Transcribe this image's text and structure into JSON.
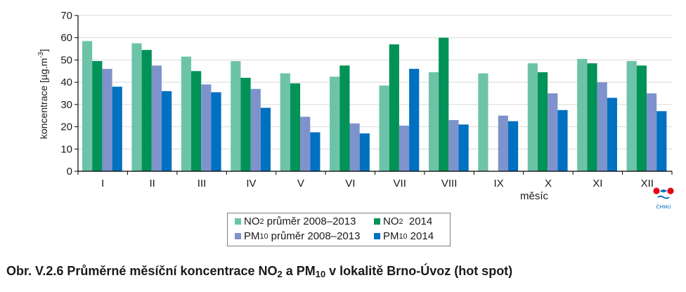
{
  "chart_data": {
    "type": "bar",
    "xlabel": "měsíc",
    "ylabel": "koncentrace [µg.m-3]",
    "ylim": [
      0,
      70
    ],
    "yticks": [
      0,
      10,
      20,
      30,
      40,
      50,
      60,
      70
    ],
    "grid": true,
    "legend_position": "bottom-center",
    "categories": [
      "I",
      "II",
      "III",
      "IV",
      "V",
      "VI",
      "VII",
      "VIII",
      "IX",
      "X",
      "XI",
      "XII"
    ],
    "series": [
      {
        "name": "NO2 průměr 2008–2013",
        "color": "#6dc3a8",
        "values": [
          58.5,
          57.5,
          51.5,
          49.5,
          44,
          42.5,
          38.5,
          44.5,
          44,
          48.5,
          50.5,
          49.5
        ]
      },
      {
        "name": "NO2 2014",
        "color": "#009257",
        "values": [
          49.5,
          54.5,
          45,
          42,
          39.5,
          47.5,
          57,
          60,
          null,
          44.5,
          48.5,
          47.5
        ]
      },
      {
        "name": "PM10 průměr 2008–2013",
        "color": "#7e93cc",
        "values": [
          46,
          47.5,
          39,
          37,
          24.5,
          21.5,
          20.5,
          23,
          25,
          35,
          40,
          35
        ]
      },
      {
        "name": "PM10 2014",
        "color": "#0070c0",
        "values": [
          38,
          36,
          35.5,
          28.5,
          17.5,
          17,
          46,
          21,
          22.5,
          27.5,
          33,
          27
        ]
      }
    ]
  },
  "legend": [
    {
      "pre": "NO",
      "sub": "2",
      "post": " průměr 2008–2013",
      "color": "#6dc3a8"
    },
    {
      "pre": "NO",
      "sub": "2",
      "post": "  2014",
      "color": "#009257"
    },
    {
      "pre": "PM",
      "sub": "10",
      "post": " průměr 2008–2013",
      "color": "#7e93cc"
    },
    {
      "pre": "PM",
      "sub": "10",
      "post": " 2014",
      "color": "#0070c0"
    }
  ],
  "caption": {
    "p1": "Obr. V.2.6  Průměrné měsíční koncentrace NO",
    "s1": "2",
    "p2": " a PM",
    "s2": "10",
    "p3": " v lokalitě Brno-Úvoz (hot spot)"
  },
  "logo_text": "ČHMÚ",
  "colors": {
    "grid": "#d9d9d9",
    "axis": "#000000",
    "logo_red": "#e30613",
    "logo_blue": "#0070c0"
  }
}
